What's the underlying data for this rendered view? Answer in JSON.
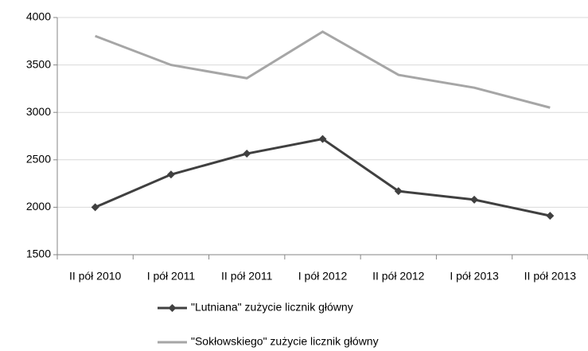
{
  "chart_data": {
    "type": "line",
    "categories": [
      "II pół 2010",
      "I pół 2011",
      "II pół 2011",
      "I pół 2012",
      "II pół 2012",
      "I pół 2013",
      "II pół 2013"
    ],
    "series": [
      {
        "name": "\"Lutniana\" zużycie licznik główny",
        "color": "#404040",
        "marker": "diamond",
        "values": [
          2000,
          2345,
          2565,
          2720,
          2170,
          2080,
          1910
        ]
      },
      {
        "name": "\"Sokłowskiego\" zużycie licznik główny",
        "color": "#a6a6a6",
        "values": [
          3805,
          3500,
          3360,
          3850,
          3395,
          3260,
          3050
        ]
      }
    ],
    "ylim": [
      1500,
      4000
    ],
    "yticks": [
      1500,
      2000,
      2500,
      3000,
      3500,
      4000
    ],
    "grid": true,
    "legend": "bottom"
  }
}
